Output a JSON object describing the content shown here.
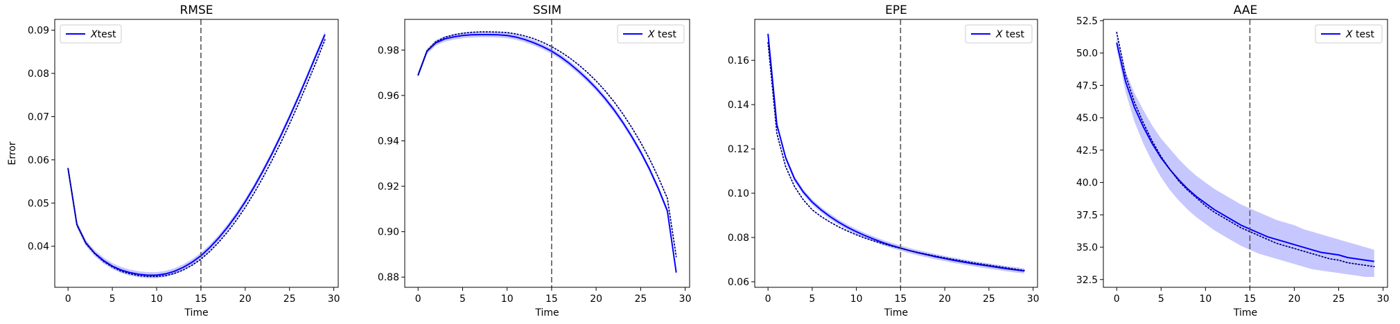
{
  "chart_data": [
    {
      "type": "line",
      "title": "RMSE",
      "xlabel": "Time",
      "ylabel": "Error",
      "xlim": [
        -1.5,
        30.5
      ],
      "ylim": [
        0.0305,
        0.0925
      ],
      "xticks": [
        0,
        5,
        10,
        15,
        20,
        25,
        30
      ],
      "yticks": [
        0.04,
        0.05,
        0.06,
        0.07,
        0.08,
        0.09
      ],
      "ytick_decimals": 2,
      "vline": 15,
      "legend": {
        "label": "$X$test",
        "placement": "upper left"
      },
      "x": [
        0,
        1,
        2,
        3,
        4,
        5,
        6,
        7,
        8,
        9,
        10,
        11,
        12,
        13,
        14,
        15,
        16,
        17,
        18,
        19,
        20,
        21,
        22,
        23,
        24,
        25,
        26,
        27,
        28,
        29
      ],
      "series": [
        {
          "name": "Xtest",
          "style": "solid",
          "values": [
            0.058,
            0.045,
            0.0408,
            0.0384,
            0.0367,
            0.0354,
            0.0345,
            0.0339,
            0.0335,
            0.0333,
            0.0333,
            0.0336,
            0.0342,
            0.0351,
            0.0363,
            0.0378,
            0.0397,
            0.0419,
            0.0444,
            0.0472,
            0.0503,
            0.0537,
            0.0574,
            0.0613,
            0.0655,
            0.0699,
            0.0745,
            0.0793,
            0.0842,
            0.089
          ],
          "band": 0.0007
        },
        {
          "style": "dotted",
          "values": [
            0.058,
            0.045,
            0.0407,
            0.0383,
            0.0365,
            0.0352,
            0.0342,
            0.0336,
            0.0332,
            0.033,
            0.033,
            0.0332,
            0.0337,
            0.0345,
            0.0356,
            0.037,
            0.0388,
            0.0409,
            0.0433,
            0.046,
            0.049,
            0.0523,
            0.0559,
            0.0598,
            0.0639,
            0.0683,
            0.0729,
            0.0777,
            0.0826,
            0.0878
          ]
        }
      ]
    },
    {
      "type": "line",
      "title": "SSIM",
      "xlabel": "Time",
      "ylabel": "",
      "xlim": [
        -1.5,
        30.5
      ],
      "ylim": [
        0.8755,
        0.9935
      ],
      "xticks": [
        0,
        5,
        10,
        15,
        20,
        25,
        30
      ],
      "yticks": [
        0.88,
        0.9,
        0.92,
        0.94,
        0.96,
        0.98
      ],
      "ytick_decimals": 2,
      "vline": 15,
      "legend": {
        "label": "$X$ test",
        "placement": "upper right"
      },
      "x": [
        0,
        1,
        2,
        3,
        4,
        5,
        6,
        7,
        8,
        9,
        10,
        11,
        12,
        13,
        14,
        15,
        16,
        17,
        18,
        19,
        20,
        21,
        22,
        23,
        24,
        25,
        26,
        27,
        28,
        29
      ],
      "series": [
        {
          "name": "X test",
          "style": "solid",
          "values": [
            0.969,
            0.9795,
            0.9832,
            0.9849,
            0.9858,
            0.9864,
            0.9867,
            0.9868,
            0.9868,
            0.9867,
            0.9864,
            0.9857,
            0.9846,
            0.9832,
            0.9815,
            0.9795,
            0.977,
            0.9741,
            0.9708,
            0.9672,
            0.9632,
            0.9587,
            0.9537,
            0.9481,
            0.9419,
            0.9351,
            0.9275,
            0.9189,
            0.9092,
            0.882
          ],
          "band": 0.0012
        },
        {
          "style": "dotted",
          "values": [
            0.969,
            0.9797,
            0.9837,
            0.9856,
            0.9867,
            0.9874,
            0.9878,
            0.988,
            0.988,
            0.9879,
            0.9877,
            0.9871,
            0.9862,
            0.985,
            0.9834,
            0.9815,
            0.9792,
            0.9766,
            0.9736,
            0.9702,
            0.9664,
            0.9621,
            0.9573,
            0.9519,
            0.9459,
            0.9393,
            0.932,
            0.9238,
            0.9147,
            0.889
          ]
        }
      ]
    },
    {
      "type": "line",
      "title": "EPE",
      "xlabel": "Time",
      "ylabel": "",
      "xlim": [
        -1.5,
        30.5
      ],
      "ylim": [
        0.0575,
        0.1785
      ],
      "xticks": [
        0,
        5,
        10,
        15,
        20,
        25,
        30
      ],
      "yticks": [
        0.06,
        0.08,
        0.1,
        0.12,
        0.14,
        0.16
      ],
      "ytick_decimals": 2,
      "vline": 15,
      "legend": {
        "label": "$X$ test",
        "placement": "upper right"
      },
      "x": [
        0,
        1,
        2,
        3,
        4,
        5,
        6,
        7,
        8,
        9,
        10,
        11,
        12,
        13,
        14,
        15,
        16,
        17,
        18,
        19,
        20,
        21,
        22,
        23,
        24,
        25,
        26,
        27,
        28,
        29
      ],
      "series": [
        {
          "name": "X test",
          "style": "solid",
          "values": [
            0.172,
            0.131,
            0.116,
            0.1065,
            0.1005,
            0.096,
            0.0925,
            0.0895,
            0.0869,
            0.0846,
            0.0826,
            0.0808,
            0.0792,
            0.0777,
            0.0764,
            0.0752,
            0.0741,
            0.0731,
            0.0722,
            0.0713,
            0.0705,
            0.0697,
            0.069,
            0.0683,
            0.0677,
            0.0671,
            0.0665,
            0.0659,
            0.0654,
            0.0649
          ],
          "band": 0.0012
        },
        {
          "style": "dotted",
          "values": [
            0.168,
            0.127,
            0.112,
            0.103,
            0.097,
            0.0925,
            0.0895,
            0.087,
            0.0848,
            0.0829,
            0.0812,
            0.0797,
            0.0784,
            0.0772,
            0.0761,
            0.0751,
            0.0741,
            0.0732,
            0.0724,
            0.0716,
            0.0708,
            0.0701,
            0.0694,
            0.0687,
            0.0681,
            0.0675,
            0.0669,
            0.0663,
            0.0657,
            0.0651
          ]
        }
      ]
    },
    {
      "type": "line",
      "title": "AAE",
      "xlabel": "Time",
      "ylabel": "",
      "xlim": [
        -1.5,
        30.5
      ],
      "ylim": [
        31.9,
        52.6
      ],
      "xticks": [
        0,
        5,
        10,
        15,
        20,
        25,
        30
      ],
      "yticks": [
        32.5,
        35.0,
        37.5,
        40.0,
        42.5,
        45.0,
        47.5,
        50.0,
        52.5
      ],
      "ytick_decimals": 1,
      "vline": 15,
      "legend": {
        "label": "$X$ test",
        "placement": "upper right"
      },
      "x": [
        0,
        1,
        2,
        3,
        4,
        5,
        6,
        7,
        8,
        9,
        10,
        11,
        12,
        13,
        14,
        15,
        16,
        17,
        18,
        19,
        20,
        21,
        22,
        23,
        24,
        25,
        26,
        27,
        28,
        29
      ],
      "series": [
        {
          "name": "X test",
          "style": "solid",
          "values": [
            50.8,
            47.8,
            45.8,
            44.3,
            43.0,
            41.9,
            41.0,
            40.2,
            39.5,
            38.9,
            38.4,
            37.9,
            37.5,
            37.1,
            36.7,
            36.4,
            36.1,
            35.8,
            35.6,
            35.4,
            35.2,
            35.0,
            34.8,
            34.6,
            34.5,
            34.4,
            34.2,
            34.1,
            34.0,
            33.9
          ],
          "band_lower": [
            50.3,
            47.0,
            44.7,
            43.0,
            41.6,
            40.4,
            39.4,
            38.6,
            37.9,
            37.3,
            36.8,
            36.3,
            35.9,
            35.5,
            35.1,
            34.8,
            34.5,
            34.3,
            34.1,
            33.9,
            33.7,
            33.5,
            33.3,
            33.2,
            33.1,
            33.0,
            32.9,
            32.8,
            32.7,
            32.7
          ],
          "band_upper": [
            51.3,
            48.6,
            46.9,
            45.6,
            44.4,
            43.4,
            42.6,
            41.8,
            41.1,
            40.5,
            40.0,
            39.5,
            39.1,
            38.7,
            38.3,
            38.0,
            37.7,
            37.4,
            37.1,
            36.9,
            36.7,
            36.4,
            36.2,
            36.0,
            35.8,
            35.6,
            35.4,
            35.2,
            35.0,
            34.8
          ]
        },
        {
          "style": "dotted",
          "values": [
            51.6,
            48.3,
            46.2,
            44.6,
            43.2,
            42.0,
            41.0,
            40.1,
            39.4,
            38.8,
            38.2,
            37.7,
            37.3,
            36.9,
            36.5,
            36.2,
            35.9,
            35.6,
            35.3,
            35.1,
            34.9,
            34.7,
            34.5,
            34.3,
            34.1,
            34.0,
            33.8,
            33.7,
            33.6,
            33.5
          ]
        }
      ]
    }
  ]
}
